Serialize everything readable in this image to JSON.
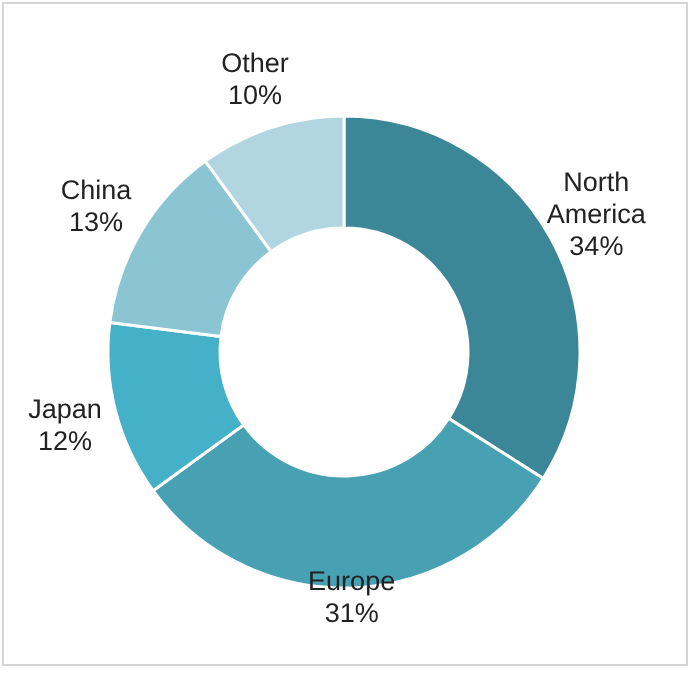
{
  "chart_data": {
    "type": "donut",
    "categories": [
      "North America",
      "Europe",
      "Japan",
      "China",
      "Other"
    ],
    "values": [
      34,
      31,
      12,
      13,
      10
    ],
    "value_labels": [
      "34%",
      "31%",
      "12%",
      "13%",
      "10%"
    ],
    "colors": [
      "#3b8797",
      "#47a1b3",
      "#45b1c8",
      "#8bc4d3",
      "#b1d6e1"
    ]
  }
}
